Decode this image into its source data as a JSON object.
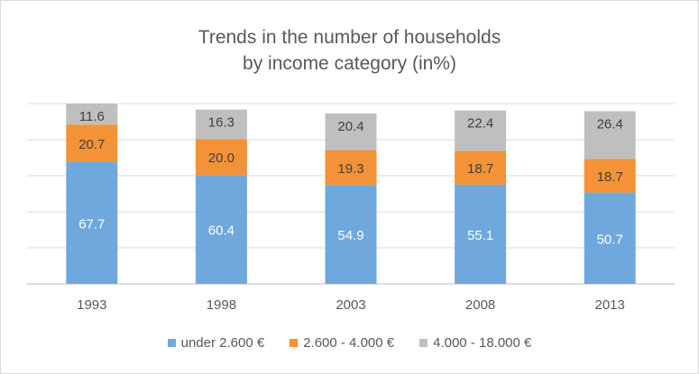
{
  "chart_data": {
    "type": "bar",
    "stacked": true,
    "title_lines": [
      "Trends in the number of households",
      "by income category (in%)"
    ],
    "categories": [
      "1993",
      "1998",
      "2003",
      "2008",
      "2013"
    ],
    "series": [
      {
        "name": "under 2.600 €",
        "color": "#6fa8dc",
        "values": [
          67.7,
          60.4,
          54.9,
          55.1,
          50.7
        ]
      },
      {
        "name": "2.600 - 4.000 €",
        "color": "#f39237",
        "values": [
          20.7,
          20.0,
          19.3,
          18.7,
          18.7
        ]
      },
      {
        "name": "4.000 - 18.000 €",
        "color": "#bfbfbf",
        "values": [
          11.6,
          16.3,
          20.4,
          22.4,
          26.4
        ]
      }
    ],
    "ylim": [
      0,
      100
    ],
    "grid": true,
    "legend_position": "bottom",
    "y_axis_labels_shown": false
  }
}
